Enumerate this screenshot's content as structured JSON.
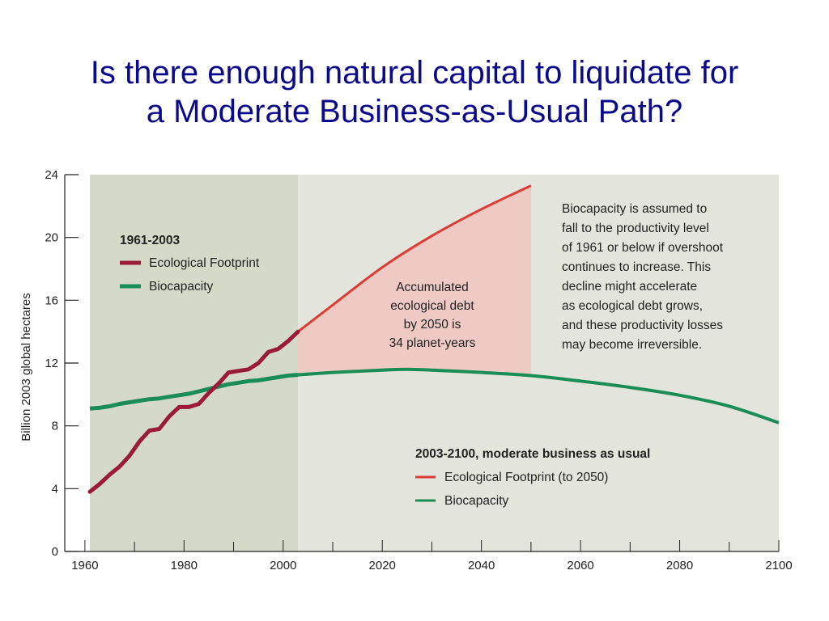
{
  "slide": {
    "title_line1": "Is there enough natural capital to liquidate for",
    "title_line2": "a Moderate Business-as-Usual Path?"
  },
  "chart_data": {
    "type": "line",
    "ylabel": "Billion 2003 global hectares",
    "xlabel": "",
    "xlim": [
      1961,
      2100
    ],
    "ylim": [
      0,
      24
    ],
    "x_ticks": [
      1960,
      1980,
      2000,
      2020,
      2040,
      2060,
      2080,
      2100
    ],
    "y_ticks": [
      0,
      4,
      8,
      12,
      16,
      20,
      24
    ],
    "grid": false,
    "historical_period": [
      1961,
      2003
    ],
    "colors": {
      "historical_band": "#d5d9c8",
      "future_band": "#e3e5dc",
      "debt_area": "#efc9c3",
      "footprint_historical": "#9b1b35",
      "biocapacity_historical": "#1a8c55",
      "footprint_projection": "#dd3b35",
      "biocapacity_projection": "#1a8c55"
    },
    "series": [
      {
        "name": "Ecological Footprint",
        "period": "1961-2003",
        "x": [
          1961,
          1963,
          1965,
          1967,
          1969,
          1971,
          1973,
          1975,
          1977,
          1979,
          1981,
          1983,
          1985,
          1987,
          1989,
          1991,
          1993,
          1995,
          1997,
          1999,
          2001,
          2003
        ],
        "y": [
          3.8,
          4.3,
          4.9,
          5.4,
          6.1,
          7.0,
          7.7,
          7.8,
          8.6,
          9.2,
          9.2,
          9.4,
          10.1,
          10.7,
          11.4,
          11.5,
          11.6,
          12.0,
          12.7,
          12.9,
          13.4,
          14.0
        ]
      },
      {
        "name": "Biocapacity",
        "period": "1961-2003",
        "x": [
          1961,
          1963,
          1965,
          1967,
          1969,
          1971,
          1973,
          1975,
          1977,
          1979,
          1981,
          1983,
          1985,
          1987,
          1989,
          1991,
          1993,
          1995,
          1997,
          1999,
          2001,
          2003
        ],
        "y": [
          9.1,
          9.15,
          9.25,
          9.4,
          9.5,
          9.6,
          9.7,
          9.75,
          9.85,
          9.95,
          10.05,
          10.2,
          10.35,
          10.5,
          10.65,
          10.75,
          10.85,
          10.9,
          11.0,
          11.1,
          11.2,
          11.25
        ]
      },
      {
        "name": "Ecological Footprint (to 2050)",
        "period": "2003-2100, moderate business as usual",
        "x": [
          2003,
          2010,
          2020,
          2030,
          2040,
          2050
        ],
        "y": [
          14.0,
          15.7,
          18.1,
          20.1,
          21.8,
          23.3
        ]
      },
      {
        "name": "Biocapacity",
        "period": "2003-2100, moderate business as usual",
        "x": [
          2003,
          2010,
          2020,
          2025,
          2030,
          2040,
          2050,
          2060,
          2070,
          2080,
          2090,
          2100
        ],
        "y": [
          11.25,
          11.4,
          11.55,
          11.6,
          11.55,
          11.4,
          11.2,
          10.85,
          10.45,
          9.95,
          9.25,
          8.2
        ]
      }
    ],
    "legends": [
      {
        "title": "1961-2003",
        "position": "upper-left",
        "items": [
          {
            "label": "Ecological Footprint",
            "color": "#9b1b35"
          },
          {
            "label": "Biocapacity",
            "color": "#1a8c55"
          }
        ]
      },
      {
        "title": "2003-2100, moderate business as usual",
        "position": "lower-center",
        "items": [
          {
            "label": "Ecological Footprint (to 2050)",
            "color": "#dd3b35"
          },
          {
            "label": "Biocapacity",
            "color": "#1a8c55"
          }
        ]
      }
    ],
    "annotations": {
      "debt": [
        "Accumulated",
        "ecological debt",
        "by 2050 is",
        "34 planet-years"
      ],
      "note": [
        "Biocapacity is assumed to",
        "fall to the productivity level",
        "of 1961 or below if overshoot",
        "continues to increase. This",
        "decline might accelerate",
        "as ecological debt grows,",
        "and these productivity losses",
        "may become irreversible."
      ]
    }
  }
}
